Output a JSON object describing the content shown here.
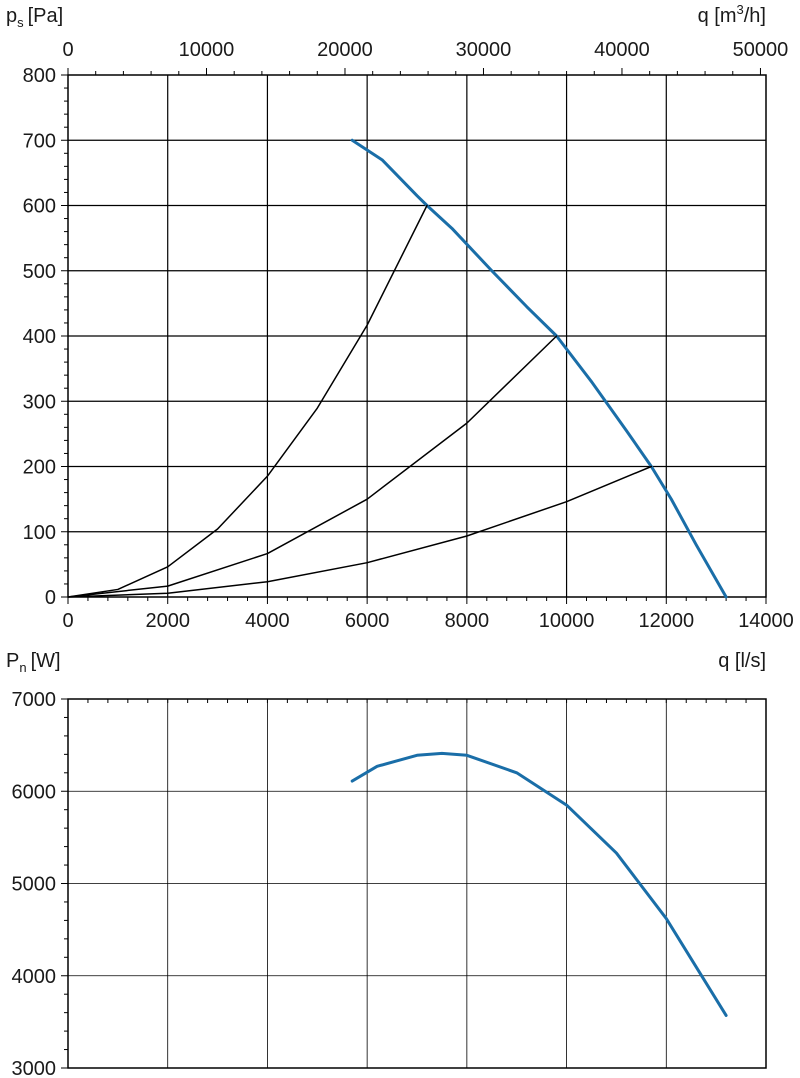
{
  "chart_data": [
    {
      "type": "line",
      "title": "",
      "ylabel": "p",
      "ylabel_sub": "s",
      "ylabel_unit": "[Pa]",
      "xlabel": "q [l/s]",
      "x2label_main": "q [m",
      "x2label_sup": "3",
      "x2label_tail": "/h]",
      "xlim": [
        0,
        14000
      ],
      "ylim": [
        0,
        800
      ],
      "x2lim": [
        0,
        50400
      ],
      "x_ticks": [
        "0",
        "2000",
        "4000",
        "6000",
        "8000",
        "10000",
        "12000",
        "14000"
      ],
      "y_ticks": [
        "0",
        "100",
        "200",
        "300",
        "400",
        "500",
        "600",
        "700",
        "800"
      ],
      "x2_ticks": [
        "0",
        "10000",
        "20000",
        "30000",
        "40000",
        "50000"
      ],
      "grid": true,
      "series": [
        {
          "color": "#1a6ea8",
          "x": [
            5700,
            6300,
            7000,
            7200,
            7700,
            8500,
            9200,
            9800,
            10500,
            11200,
            11700,
            12100,
            12600,
            13200
          ],
          "y": [
            700,
            670,
            615,
            600,
            565,
            500,
            445,
            400,
            330,
            255,
            200,
            150,
            80,
            0
          ]
        },
        {
          "color": "#000000",
          "x": [
            0,
            1000,
            2000,
            3000,
            4000,
            5000,
            6000,
            7200
          ],
          "y": [
            0,
            11.6,
            46.3,
            104.2,
            185.2,
            289.4,
            416.7,
            600
          ]
        },
        {
          "color": "#000000",
          "x": [
            0,
            2000,
            4000,
            6000,
            8000,
            9800
          ],
          "y": [
            0,
            16.7,
            66.6,
            149.9,
            266.5,
            400
          ]
        },
        {
          "color": "#000000",
          "x": [
            0,
            2000,
            4000,
            6000,
            8000,
            10000,
            11700
          ],
          "y": [
            0,
            5.8,
            23.4,
            52.6,
            93.5,
            146.1,
            200
          ]
        }
      ]
    },
    {
      "type": "line",
      "title": "",
      "ylabel": "P",
      "ylabel_sub": "n",
      "ylabel_unit": "[W]",
      "xlim": [
        0,
        14000
      ],
      "ylim": [
        3000,
        7000
      ],
      "y_ticks": [
        "3000",
        "4000",
        "5000",
        "6000",
        "7000"
      ],
      "grid": true,
      "series": [
        {
          "color": "#1a6ea8",
          "x": [
            5700,
            6200,
            7000,
            7500,
            8000,
            9000,
            10000,
            11000,
            12000,
            13200
          ],
          "y": [
            6110,
            6270,
            6390,
            6410,
            6390,
            6200,
            5850,
            5330,
            4620,
            3570
          ]
        }
      ]
    }
  ]
}
